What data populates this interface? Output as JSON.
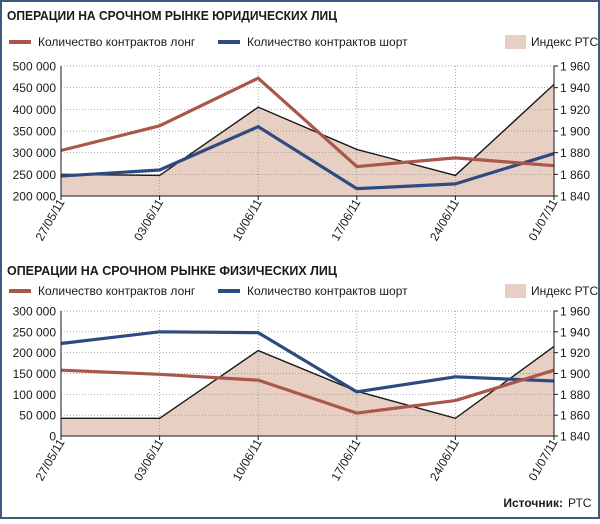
{
  "colors": {
    "frame": "#3f5a80",
    "long": "#a9574b",
    "short": "#2e4b80",
    "rts_fill": "#e8cfc3",
    "rts_line": "#1a1a1a",
    "grid": "#888888",
    "text": "#1a1a1a"
  },
  "source": {
    "label": "Источник:",
    "value": "РТС"
  },
  "chart_data": [
    {
      "type": "line",
      "title": "ОПЕРАЦИИ НА СРОЧНОМ РЫНКЕ ЮРИДИЧЕСКИХ ЛИЦ",
      "legend": {
        "long": "Количество контрактов лонг",
        "short": "Количество контрактов шорт",
        "rts": "Индекс РТС"
      },
      "categories": [
        "27/05/11",
        "03/06/11",
        "10/06/11",
        "17/06/11",
        "24/06/11",
        "01/07/11"
      ],
      "ylim": [
        200000,
        500000
      ],
      "yticks": [
        200000,
        250000,
        300000,
        350000,
        400000,
        450000,
        500000
      ],
      "ytick_labels": [
        "200 000",
        "250 000",
        "300 000",
        "350 000",
        "400 000",
        "450 000",
        "500 000"
      ],
      "y2lim": [
        1840,
        1960
      ],
      "y2ticks": [
        1840,
        1860,
        1880,
        1900,
        1920,
        1940,
        1960
      ],
      "y2tick_labels": [
        "1 840",
        "1 860",
        "1 880",
        "1 900",
        "1 920",
        "1 940",
        "1 960"
      ],
      "series": [
        {
          "name": "Количество контрактов лонг",
          "key": "long",
          "axis": "left",
          "values": [
            305000,
            362000,
            472000,
            268000,
            288000,
            270000
          ]
        },
        {
          "name": "Количество контрактов шорт",
          "key": "short",
          "axis": "left",
          "values": [
            246000,
            260000,
            360000,
            217000,
            228000,
            298000
          ]
        },
        {
          "name": "Индекс РТС",
          "key": "rts",
          "axis": "right",
          "type": "area",
          "values": [
            1860,
            1859,
            1922,
            1883,
            1859,
            1943
          ]
        }
      ]
    },
    {
      "type": "line",
      "title": "ОПЕРАЦИИ НА СРОЧНОМ РЫНКЕ ФИЗИЧЕСКИХ ЛИЦ",
      "legend": {
        "long": "Количество контрактов лонг",
        "short": "Количество контрактов шорт",
        "rts": "Индекс РТС"
      },
      "categories": [
        "27/05/11",
        "03/06/11",
        "10/06/11",
        "17/06/11",
        "24/06/11",
        "01/07/11"
      ],
      "ylim": [
        0,
        300000
      ],
      "yticks": [
        0,
        50000,
        100000,
        150000,
        200000,
        250000,
        300000
      ],
      "ytick_labels": [
        "0",
        "50 000",
        "100 000",
        "150 000",
        "200 000",
        "250 000",
        "300 000"
      ],
      "y2lim": [
        1840,
        1960
      ],
      "y2ticks": [
        1840,
        1860,
        1880,
        1900,
        1920,
        1940,
        1960
      ],
      "y2tick_labels": [
        "1 840",
        "1 860",
        "1 880",
        "1 900",
        "1 920",
        "1 940",
        "1 960"
      ],
      "series": [
        {
          "name": "Количество контрактов лонг",
          "key": "long",
          "axis": "left",
          "values": [
            158000,
            148000,
            134000,
            55000,
            85000,
            158000
          ]
        },
        {
          "name": "Количество контрактов шорт",
          "key": "short",
          "axis": "left",
          "values": [
            222000,
            250000,
            248000,
            106000,
            142000,
            132000
          ]
        },
        {
          "name": "Индекс РТС",
          "key": "rts",
          "axis": "right",
          "type": "area",
          "values": [
            1857,
            1857,
            1922,
            1883,
            1857,
            1926
          ]
        }
      ]
    }
  ]
}
